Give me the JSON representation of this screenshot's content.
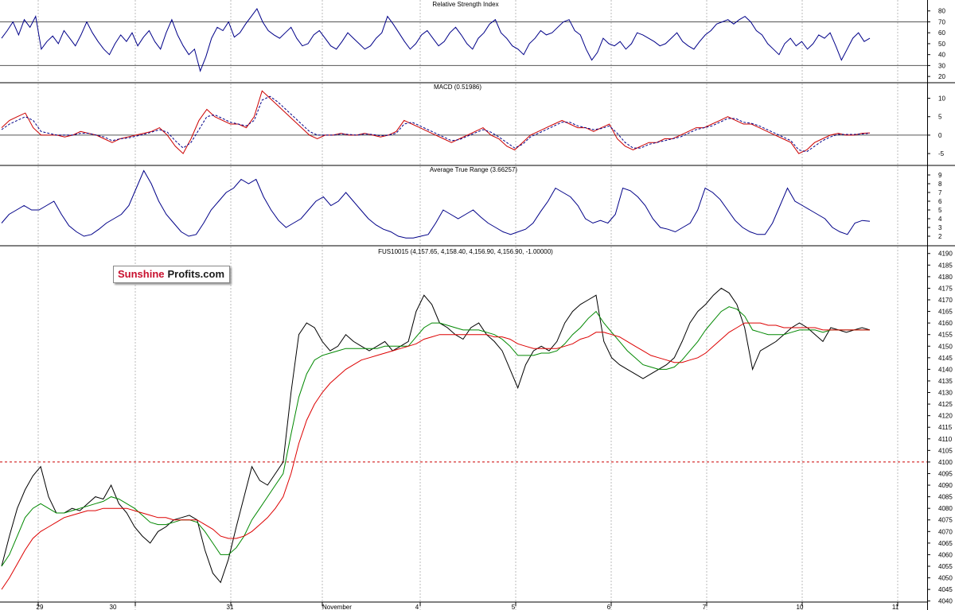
{
  "chart_data": [
    {
      "type": "line",
      "title": "Relative Strength Index",
      "ylim": [
        15,
        90
      ],
      "ticks": [
        20,
        30,
        40,
        50,
        60,
        70,
        80
      ],
      "reference_lines": [
        30,
        70
      ],
      "series": [
        {
          "values": [
            55,
            62,
            70,
            58,
            72,
            65,
            75,
            45,
            52,
            57,
            50,
            62,
            55,
            48,
            58,
            70,
            60,
            52,
            45,
            40,
            50,
            58,
            52,
            60,
            48,
            56,
            62,
            52,
            45,
            60,
            72,
            58,
            48,
            40,
            45,
            25,
            38,
            55,
            65,
            62,
            70,
            56,
            60,
            68,
            75,
            82,
            70,
            62,
            58,
            55,
            60,
            65,
            55,
            48,
            50,
            58,
            62,
            55,
            48,
            45,
            52,
            60,
            55,
            50,
            45,
            48,
            55,
            60,
            75,
            68,
            60,
            52,
            45,
            50,
            58,
            62,
            55,
            48,
            52,
            60,
            65,
            58,
            50,
            45,
            55,
            60,
            68,
            72,
            60,
            55,
            48,
            45,
            40,
            50,
            55,
            62,
            58,
            60,
            65,
            70,
            72,
            62,
            58,
            45,
            35,
            42,
            55,
            50,
            48,
            52,
            45,
            50,
            60,
            58,
            55,
            52,
            48,
            50,
            55,
            60,
            52,
            48,
            45,
            52,
            58,
            62,
            68,
            70,
            72,
            68,
            72,
            75,
            70,
            62,
            58,
            50,
            45,
            40,
            50,
            55,
            48,
            52,
            45,
            50,
            58,
            55,
            60,
            48,
            35,
            45,
            55,
            60,
            52,
            55
          ]
        }
      ]
    },
    {
      "type": "line",
      "title": "MACD (0.51986)",
      "ylim": [
        -8,
        14
      ],
      "ticks": [
        -5,
        0,
        5,
        10
      ],
      "reference_lines": [
        0
      ],
      "series": [
        {
          "color": "#cc0000",
          "values": [
            2,
            4,
            5,
            6,
            2,
            0,
            0,
            0,
            -0.5,
            0,
            1,
            0.5,
            0,
            -1,
            -2,
            -1,
            -0.5,
            0,
            0.5,
            1,
            2,
            0,
            -3,
            -5,
            -1,
            4,
            7,
            5,
            4,
            3,
            3,
            2,
            5,
            12,
            10,
            8,
            6,
            4,
            2,
            0,
            -1,
            0,
            0,
            0.5,
            0,
            0,
            0.5,
            0,
            -0.5,
            0,
            1,
            4,
            3,
            2,
            1,
            0,
            -1,
            -2,
            -1,
            0,
            1,
            2,
            0,
            -1,
            -3,
            -4,
            -2,
            0,
            1,
            2,
            3,
            4,
            3,
            2,
            2,
            1,
            2,
            3,
            -1,
            -3,
            -4,
            -3,
            -2,
            -2,
            -1,
            -1,
            0,
            1,
            2,
            2,
            3,
            4,
            5,
            4,
            3,
            3,
            2,
            1,
            0,
            -1,
            -2,
            -5,
            -4,
            -2,
            -1,
            0,
            0.5,
            0,
            0,
            0.5,
            0.6
          ]
        },
        {
          "color": "#000088",
          "values": [
            1.5,
            3,
            4,
            5,
            4,
            1,
            0.5,
            0,
            0,
            0,
            0.5,
            0.5,
            0,
            -0.5,
            -1.5,
            -1,
            -0.8,
            -0.3,
            0.2,
            0.8,
            1.5,
            0.8,
            -1.5,
            -3.5,
            -2,
            1.5,
            5,
            5.5,
            4.5,
            3.5,
            3,
            2.5,
            4,
            9.5,
            10.5,
            9,
            7,
            5,
            3,
            1,
            0,
            0,
            0,
            0.3,
            0.2,
            0,
            0.3,
            0.2,
            -0.2,
            0,
            0.5,
            3,
            3.5,
            2.5,
            1.5,
            0.5,
            -0.5,
            -1.5,
            -1.2,
            -0.3,
            0.6,
            1.5,
            0.8,
            -0.5,
            -2,
            -3.5,
            -2.5,
            -0.5,
            0.5,
            1.5,
            2.5,
            3.5,
            3.5,
            2.5,
            2,
            1.5,
            1.8,
            2.5,
            0.5,
            -2,
            -3.5,
            -3.5,
            -2.5,
            -2,
            -1.5,
            -1,
            -0.5,
            0.5,
            1.5,
            2,
            2.5,
            3.5,
            4.5,
            4.5,
            3.5,
            3.2,
            2.5,
            1.5,
            0.5,
            -0.5,
            -1.5,
            -4,
            -4.5,
            -3,
            -1.5,
            -0.5,
            0.2,
            0.2,
            0.2,
            0.3,
            0.5
          ]
        }
      ]
    },
    {
      "type": "line",
      "title": "Average True Range (3.66257)",
      "ylim": [
        1,
        10
      ],
      "ticks": [
        2,
        3,
        4,
        5,
        6,
        7,
        8,
        9
      ],
      "series": [
        {
          "values": [
            3.5,
            4.5,
            5,
            5.5,
            5,
            5,
            5.5,
            6,
            4.5,
            3.2,
            2.5,
            2,
            2.2,
            2.8,
            3.5,
            4,
            4.5,
            5.5,
            7.5,
            9.5,
            8,
            6,
            4.5,
            3.5,
            2.5,
            2,
            2.2,
            3.5,
            5,
            6,
            7,
            7.5,
            8.5,
            8,
            8.5,
            6.5,
            5,
            3.8,
            3,
            3.5,
            4,
            5,
            6,
            6.5,
            5.5,
            6,
            7,
            6,
            5,
            4,
            3.3,
            2.8,
            2.5,
            2,
            1.8,
            1.8,
            2,
            2.2,
            3.5,
            5,
            4.5,
            4,
            4.5,
            5,
            4.2,
            3.5,
            3,
            2.5,
            2.2,
            2.5,
            2.8,
            3.5,
            4.8,
            6,
            7.5,
            7,
            6.5,
            5.5,
            4,
            3.5,
            3.8,
            3.5,
            4.5,
            7.5,
            7.2,
            6.5,
            5.5,
            4,
            3,
            2.8,
            2.5,
            3,
            3.5,
            5,
            7.5,
            7,
            6.2,
            5,
            3.8,
            3,
            2.5,
            2.2,
            2.2,
            3.5,
            5.5,
            7.5,
            6,
            5.5,
            5,
            4.5,
            4,
            3,
            2.5,
            2.2,
            3.5,
            3.8,
            3.7
          ]
        }
      ]
    },
    {
      "type": "line",
      "title": "FUS10015 (4,157.65, 4,158.40, 4,156.90, 4,156.90, -1.00000)",
      "ylim": [
        4032,
        4193
      ],
      "ticks": [
        4035,
        4040,
        4045,
        4050,
        4055,
        4060,
        4065,
        4070,
        4075,
        4080,
        4085,
        4090,
        4095,
        4100,
        4105,
        4110,
        4115,
        4120,
        4125,
        4130,
        4135,
        4140,
        4145,
        4150,
        4155,
        4160,
        4165,
        4170,
        4175,
        4180,
        4185,
        4190
      ],
      "reference_lines": [
        4100
      ],
      "x_tick_labels": [
        "29",
        "30",
        "31",
        "November",
        "4",
        "5",
        "6",
        "7",
        "10",
        "11"
      ],
      "series": [
        {
          "color": "#000000",
          "values": [
            4055,
            4068,
            4080,
            4088,
            4094,
            4098,
            4085,
            4078,
            4078,
            4080,
            4079,
            4082,
            4085,
            4084,
            4090,
            4082,
            4078,
            4072,
            4068,
            4065,
            4070,
            4072,
            4075,
            4076,
            4077,
            4075,
            4062,
            4052,
            4048,
            4058,
            4072,
            4085,
            4098,
            4092,
            4090,
            4095,
            4100,
            4130,
            4155,
            4160,
            4158,
            4152,
            4148,
            4150,
            4155,
            4152,
            4150,
            4148,
            4150,
            4152,
            4148,
            4150,
            4152,
            4165,
            4172,
            4168,
            4160,
            4158,
            4155,
            4153,
            4158,
            4160,
            4155,
            4152,
            4148,
            4140,
            4132,
            4142,
            4148,
            4150,
            4148,
            4152,
            4160,
            4165,
            4168,
            4170,
            4172,
            4152,
            4145,
            4142,
            4140,
            4138,
            4136,
            4138,
            4140,
            4142,
            4145,
            4152,
            4160,
            4165,
            4168,
            4172,
            4175,
            4173,
            4168,
            4158,
            4140,
            4148,
            4150,
            4152,
            4155,
            4158,
            4160,
            4158,
            4155,
            4152,
            4158,
            4157,
            4156,
            4157,
            4158,
            4157
          ]
        },
        {
          "color": "#008800",
          "values": [
            4055,
            4060,
            4068,
            4076,
            4080,
            4082,
            4080,
            4078,
            4078,
            4079,
            4080,
            4081,
            4082,
            4083,
            4085,
            4084,
            4082,
            4080,
            4077,
            4074,
            4073,
            4073,
            4074,
            4075,
            4075,
            4074,
            4070,
            4065,
            4060,
            4060,
            4063,
            4068,
            4075,
            4080,
            4085,
            4090,
            4095,
            4112,
            4128,
            4138,
            4144,
            4146,
            4147,
            4148,
            4149,
            4149,
            4149,
            4149,
            4149,
            4150,
            4150,
            4150,
            4150,
            4154,
            4158,
            4160,
            4160,
            4159,
            4158,
            4157,
            4157,
            4157,
            4156,
            4155,
            4153,
            4150,
            4146,
            4146,
            4146,
            4147,
            4147,
            4148,
            4151,
            4155,
            4158,
            4162,
            4165,
            4160,
            4156,
            4152,
            4148,
            4145,
            4142,
            4141,
            4140,
            4140,
            4141,
            4144,
            4148,
            4152,
            4157,
            4161,
            4165,
            4167,
            4166,
            4163,
            4157,
            4156,
            4155,
            4155,
            4155,
            4156,
            4157,
            4157,
            4157,
            4156,
            4157,
            4157,
            4157,
            4157,
            4157,
            4157
          ]
        },
        {
          "color": "#dd0000",
          "values": [
            4045,
            4050,
            4056,
            4062,
            4067,
            4070,
            4072,
            4074,
            4076,
            4077,
            4078,
            4079,
            4079,
            4080,
            4080,
            4080,
            4080,
            4079,
            4078,
            4077,
            4076,
            4076,
            4075,
            4075,
            4075,
            4075,
            4073,
            4071,
            4068,
            4067,
            4067,
            4068,
            4070,
            4073,
            4076,
            4080,
            4085,
            4095,
            4108,
            4118,
            4125,
            4130,
            4134,
            4137,
            4140,
            4142,
            4144,
            4145,
            4146,
            4147,
            4148,
            4149,
            4150,
            4151,
            4153,
            4154,
            4155,
            4155,
            4155,
            4155,
            4155,
            4155,
            4155,
            4154,
            4154,
            4153,
            4151,
            4150,
            4149,
            4149,
            4149,
            4149,
            4150,
            4151,
            4153,
            4154,
            4156,
            4156,
            4155,
            4154,
            4152,
            4150,
            4148,
            4146,
            4145,
            4144,
            4143,
            4143,
            4144,
            4145,
            4147,
            4150,
            4153,
            4156,
            4158,
            4160,
            4160,
            4160,
            4159,
            4159,
            4158,
            4158,
            4158,
            4158,
            4158,
            4157,
            4157,
            4157,
            4157,
            4157,
            4157,
            4157
          ]
        }
      ]
    }
  ],
  "logo": {
    "part1": "Sunshine",
    "part2": "Profits.com"
  }
}
